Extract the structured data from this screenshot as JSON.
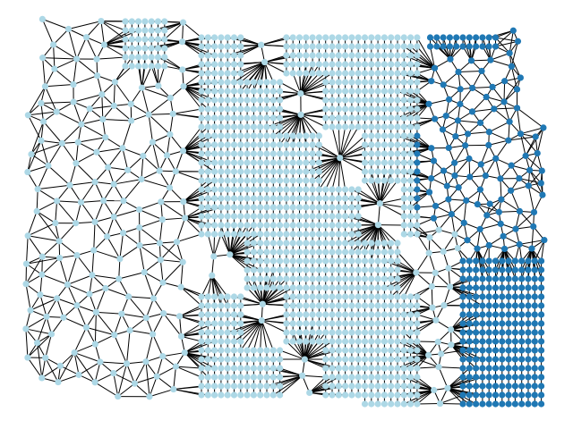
{
  "graph": {
    "node_colors": [
      "#add8e6",
      "#1f78b4"
    ],
    "edge_color": "#000000"
  }
}
